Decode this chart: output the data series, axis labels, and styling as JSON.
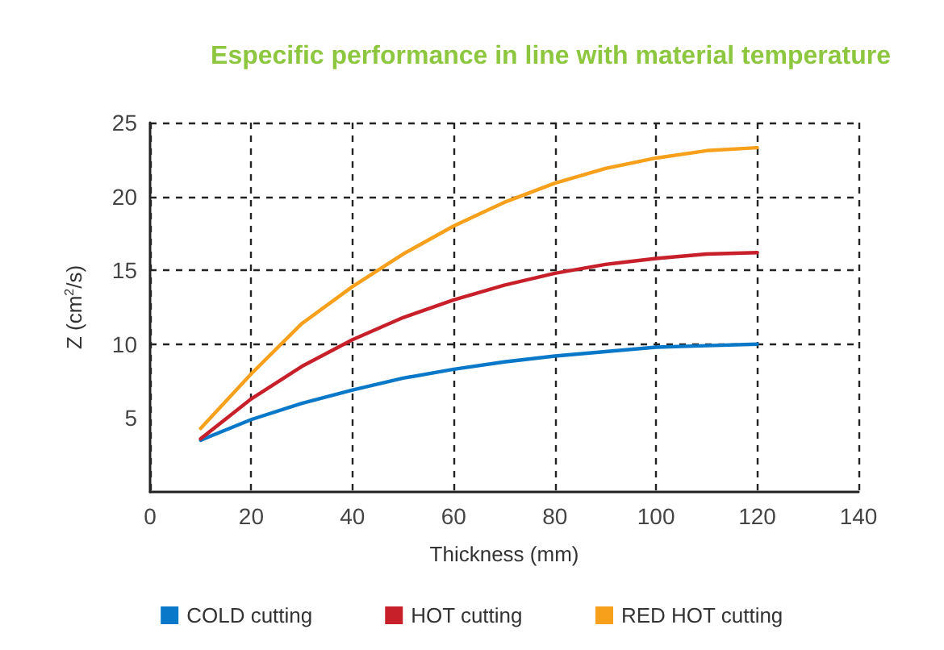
{
  "chart_data": {
    "type": "line",
    "title": "Especific performance in line with material temperature",
    "xlabel": "Thickness (mm)",
    "ylabel": "Z (cm$^{2}$/s)",
    "x": [
      10,
      20,
      30,
      40,
      50,
      60,
      70,
      80,
      90,
      100,
      110,
      120
    ],
    "series": [
      {
        "name": "COLD cutting",
        "color": "#0a78c8",
        "values": [
          3.5,
          4.9,
          6.0,
          6.9,
          7.7,
          8.3,
          8.8,
          9.2,
          9.5,
          9.8,
          9.9,
          10.0
        ]
      },
      {
        "name": "HOT cutting",
        "color": "#c8202a",
        "values": [
          3.6,
          6.3,
          8.5,
          10.3,
          11.8,
          13.0,
          14.0,
          14.8,
          15.4,
          15.8,
          16.1,
          16.2
        ]
      },
      {
        "name": "RED HOT cutting",
        "color": "#f7a01c",
        "values": [
          4.3,
          8.0,
          11.4,
          13.9,
          16.1,
          18.0,
          19.6,
          20.9,
          21.9,
          22.6,
          23.1,
          23.3
        ]
      }
    ],
    "xlim": [
      0,
      140
    ],
    "xticks": [
      0,
      20,
      40,
      60,
      80,
      100,
      120,
      140
    ],
    "ylim": [
      0,
      25
    ],
    "yticks": [
      5,
      10,
      15,
      20,
      25
    ],
    "grid": true,
    "legend": "bottom",
    "marker": "none",
    "line_style": "solid"
  }
}
